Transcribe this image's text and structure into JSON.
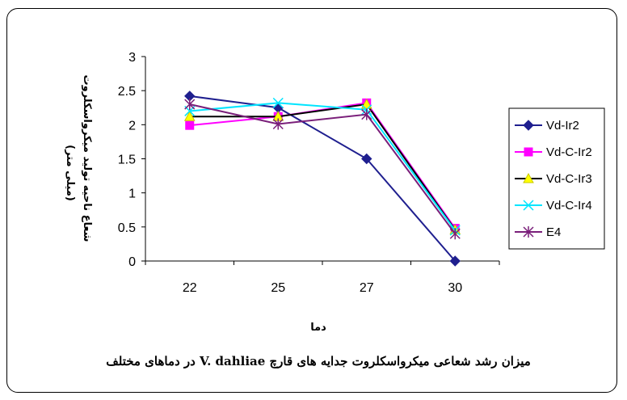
{
  "chart_data": {
    "type": "line",
    "title": "",
    "caption": "میزان رشد شعاعی میکرواسکلروت جدایه های قارچ V. dahliae در دماهای مختلف",
    "xlabel": "دما",
    "ylabel_line1": "شعاع ناحیه تولید میکرواسکلروت",
    "ylabel_line2": "(میلی متر)",
    "categories": [
      "22",
      "25",
      "27",
      "30"
    ],
    "ylim": [
      0,
      3
    ],
    "yticks": [
      "0",
      "0.5",
      "1",
      "1.5",
      "2",
      "2.5",
      "3"
    ],
    "legend_position": "right",
    "grid": false,
    "series": [
      {
        "name": "Vd-Ir2",
        "values": [
          2.42,
          2.25,
          1.5,
          0.0
        ],
        "color": "#1f1f8f",
        "marker": "diamond"
      },
      {
        "name": "Vd-C-Ir2",
        "values": [
          1.99,
          2.12,
          2.32,
          0.48
        ],
        "color": "#ff00ff",
        "marker": "square"
      },
      {
        "name": "Vd-C-Ir3",
        "values": [
          2.12,
          2.12,
          2.3,
          0.46
        ],
        "color": "#000000",
        "marker": "triangle"
      },
      {
        "name": "Vd-C-Ir4",
        "values": [
          2.2,
          2.32,
          2.22,
          0.45
        ],
        "color": "#00e5ff",
        "marker": "x"
      },
      {
        "name": "E4",
        "values": [
          2.3,
          2.01,
          2.15,
          0.4
        ],
        "color": "#7a1f7a",
        "marker": "star"
      }
    ]
  }
}
